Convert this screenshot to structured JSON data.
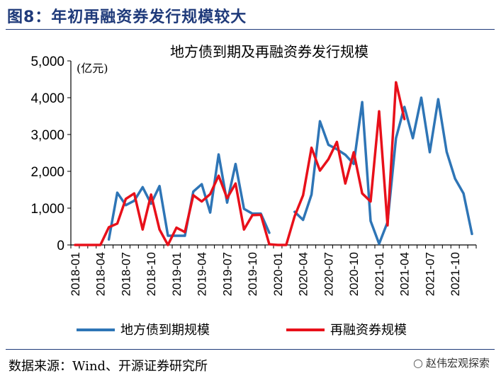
{
  "figure": {
    "title": "图8：年初再融资券发行规模较大",
    "source": "数据来源：Wind、开源证券研究所",
    "watermark": "赵伟宏观探索",
    "colors": {
      "title": "#1f3a7a",
      "series1": "#2e75b6",
      "series2": "#e8101a"
    }
  },
  "chart_data": {
    "type": "line",
    "title": "地方债到期及再融资券发行规模",
    "ylabel": "(亿元)",
    "ylim": [
      0,
      5000
    ],
    "yticks": [
      0,
      1000,
      2000,
      3000,
      4000,
      5000
    ],
    "ytick_labels": [
      "0",
      "1,000",
      "2,000",
      "3,000",
      "4,000",
      "5,000"
    ],
    "x": [
      "2018-01",
      "2018-02",
      "2018-03",
      "2018-04",
      "2018-05",
      "2018-06",
      "2018-07",
      "2018-08",
      "2018-09",
      "2018-10",
      "2018-11",
      "2018-12",
      "2019-01",
      "2019-02",
      "2019-03",
      "2019-04",
      "2019-05",
      "2019-06",
      "2019-07",
      "2019-08",
      "2019-09",
      "2019-10",
      "2019-11",
      "2019-12",
      "2020-01",
      "2020-02",
      "2020-03",
      "2020-04",
      "2020-05",
      "2020-06",
      "2020-07",
      "2020-08",
      "2020-09",
      "2020-10",
      "2020-11",
      "2020-12",
      "2021-01",
      "2021-02",
      "2021-03",
      "2021-04",
      "2021-05",
      "2021-06",
      "2021-07",
      "2021-08",
      "2021-09",
      "2021-10",
      "2021-11",
      "2021-12"
    ],
    "xtick_labels": [
      "2018-01",
      "2018-04",
      "2018-07",
      "2018-10",
      "2019-01",
      "2019-04",
      "2019-07",
      "2019-10",
      "2020-01",
      "2020-04",
      "2020-07",
      "2020-10",
      "2021-01",
      "2021-04",
      "2021-07",
      "2021-10"
    ],
    "grid": false,
    "legend_position": "bottom",
    "series": [
      {
        "name": "地方债到期规模",
        "color": "#2e75b6",
        "values": [
          null,
          null,
          null,
          null,
          150,
          1420,
          1080,
          1200,
          1570,
          1120,
          1600,
          250,
          250,
          250,
          1450,
          1650,
          880,
          2460,
          1150,
          2200,
          980,
          850,
          850,
          330,
          null,
          null,
          900,
          680,
          1370,
          3360,
          2720,
          2600,
          2450,
          2200,
          3880,
          650,
          30,
          620,
          2900,
          3750,
          2900,
          4000,
          2520,
          3960,
          2530,
          1800,
          1400,
          300
        ]
      },
      {
        "name": "再融资券规模",
        "color": "#e8101a",
        "values": [
          0,
          0,
          0,
          0,
          480,
          580,
          1250,
          1400,
          420,
          1370,
          420,
          0,
          470,
          350,
          1350,
          1180,
          1380,
          1880,
          1270,
          1670,
          420,
          810,
          820,
          20,
          0,
          0,
          780,
          1350,
          2640,
          2020,
          2330,
          2800,
          1670,
          2520,
          1400,
          1180,
          3630,
          530,
          4420,
          3420,
          null,
          null,
          null,
          null,
          null,
          null,
          null,
          null
        ]
      }
    ]
  }
}
